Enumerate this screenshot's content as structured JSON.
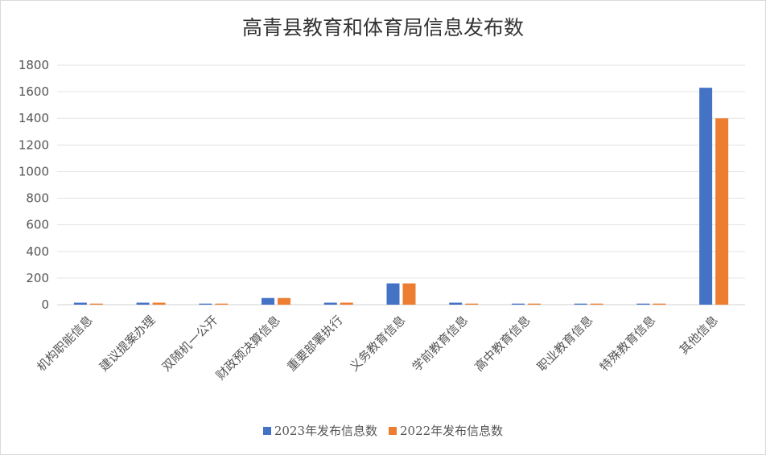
{
  "chart_data": {
    "type": "bar",
    "title": "高青县教育和体育局信息发布数",
    "categories": [
      "机构职能信息",
      "建议提案办理",
      "双随机一公开",
      "财政预决算信息",
      "重要部署执行",
      "义务教育信息",
      "学前教育信息",
      "高中教育信息",
      "职业教育信息",
      "特殊教育信息",
      "其他信息"
    ],
    "series": [
      {
        "name": "2023年发布信息数",
        "color": "#4472c4",
        "values": [
          15,
          15,
          8,
          50,
          15,
          160,
          15,
          8,
          8,
          8,
          1630
        ]
      },
      {
        "name": "2022年发布信息数",
        "color": "#ed7d31",
        "values": [
          8,
          15,
          8,
          50,
          15,
          160,
          8,
          8,
          8,
          8,
          1400
        ]
      }
    ],
    "ylim": [
      0,
      1800
    ],
    "yticks": [
      0,
      200,
      400,
      600,
      800,
      1000,
      1200,
      1400,
      1600,
      1800
    ],
    "grid": true,
    "legend": "bottom"
  }
}
